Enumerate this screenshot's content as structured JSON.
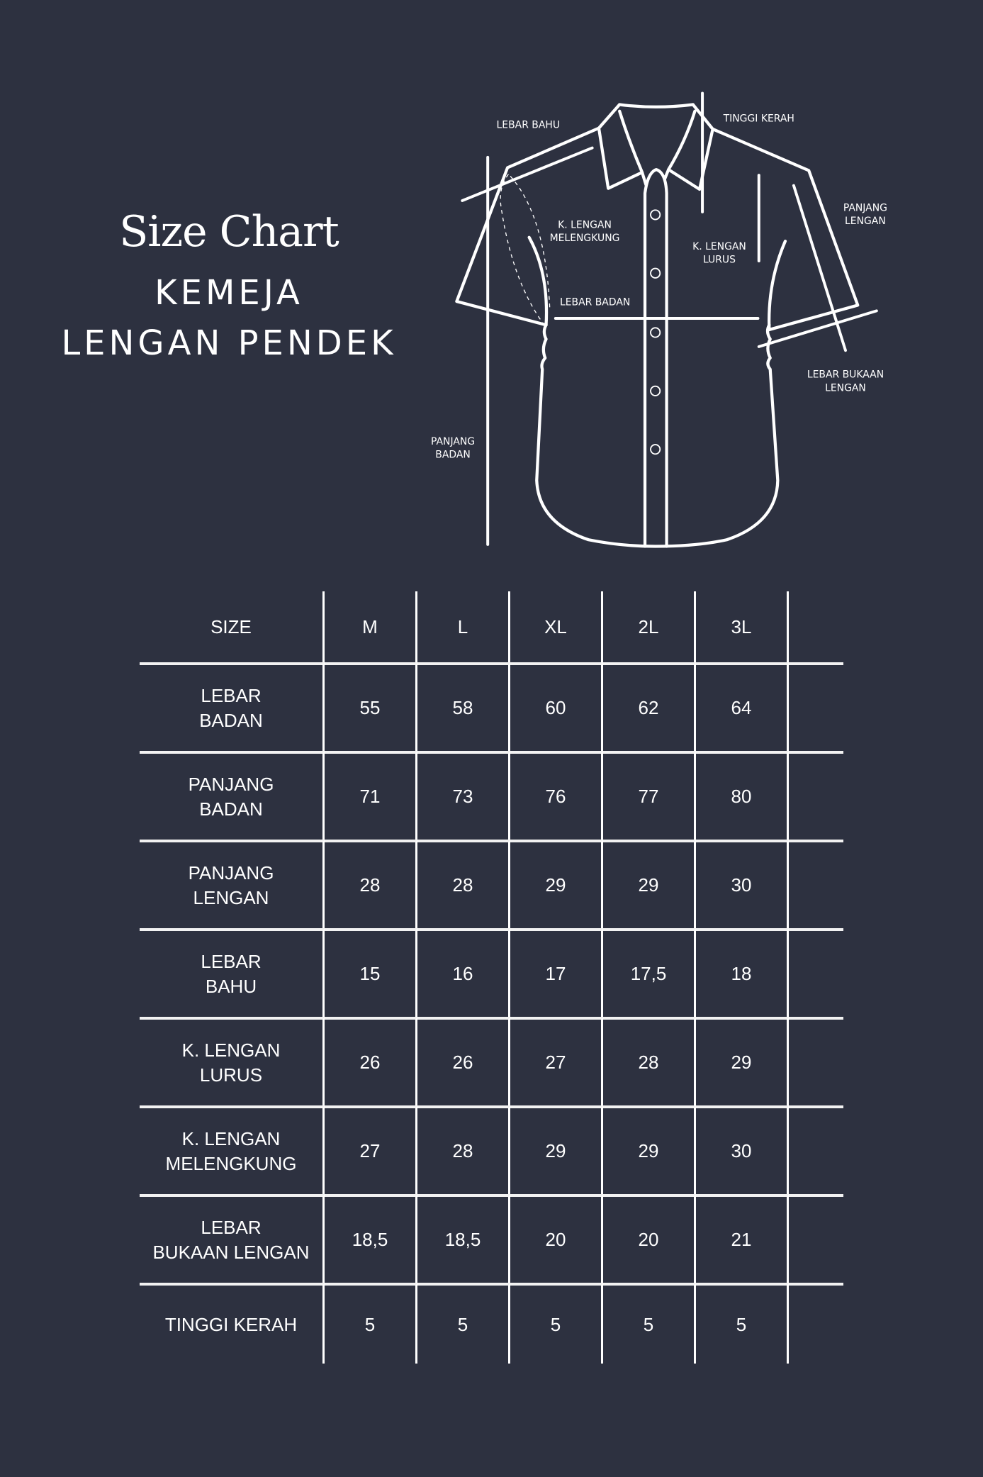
{
  "title": {
    "script": "Size Chart",
    "line1": "KEMEJA",
    "line2": "LENGAN PENDEK"
  },
  "diagram": {
    "labels": {
      "lebar_bahu": "LEBAR BAHU",
      "tinggi_kerah": "TINGGI KERAH",
      "panjang_lengan": [
        "PANJANG",
        "LENGAN"
      ],
      "k_lengan_melengkung": [
        "K. LENGAN",
        "MELENGKUNG"
      ],
      "k_lengan_lurus": [
        "K. LENGAN",
        "LURUS"
      ],
      "lebar_badan": "LEBAR BADAN",
      "lebar_bukaan_lengan": [
        "LEBAR BUKAAN",
        "LENGAN"
      ],
      "panjang_badan": [
        "PANJANG",
        "BADAN"
      ]
    },
    "colors": {
      "background": "#2d3140",
      "line": "#ffffff"
    }
  },
  "table": {
    "header": [
      "SIZE",
      "M",
      "L",
      "XL",
      "2L",
      "3L"
    ],
    "rows": [
      {
        "label": "LEBAR\nBADAN",
        "values": [
          "55",
          "58",
          "60",
          "62",
          "64"
        ]
      },
      {
        "label": "PANJANG\nBADAN",
        "values": [
          "71",
          "73",
          "76",
          "77",
          "80"
        ]
      },
      {
        "label": "PANJANG\nLENGAN",
        "values": [
          "28",
          "28",
          "29",
          "29",
          "30"
        ]
      },
      {
        "label": "LEBAR\nBAHU",
        "values": [
          "15",
          "16",
          "17",
          "17,5",
          "18"
        ]
      },
      {
        "label": "K. LENGAN\nLURUS",
        "values": [
          "26",
          "26",
          "27",
          "28",
          "29"
        ]
      },
      {
        "label": "K. LENGAN\nMELENGKUNG",
        "values": [
          "27",
          "28",
          "29",
          "29",
          "30"
        ]
      },
      {
        "label": "LEBAR\nBUKAAN LENGAN",
        "values": [
          "18,5",
          "18,5",
          "20",
          "20",
          "21"
        ]
      },
      {
        "label": "TINGGI KERAH",
        "values": [
          "5",
          "5",
          "5",
          "5",
          "5"
        ]
      }
    ]
  }
}
